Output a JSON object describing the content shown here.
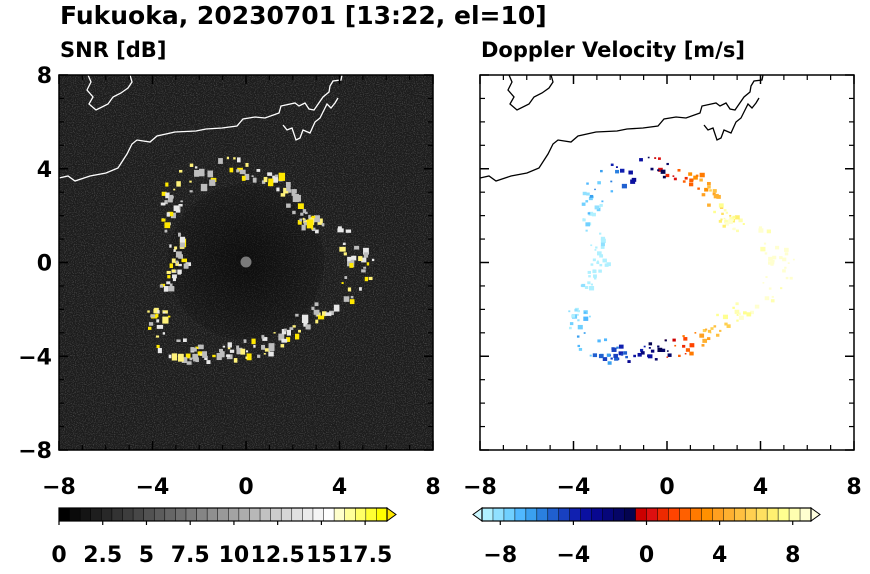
{
  "title": "Fukuoka, 20230701 [13:22, el=10]",
  "chart_data": [
    {
      "type": "heatmap",
      "title": "SNR [dB]",
      "xlim": [
        -8,
        8
      ],
      "ylim": [
        -8,
        8
      ],
      "xticks": [
        "−8",
        "−4",
        "0",
        "4",
        "8"
      ],
      "yticks": [
        "8",
        "4",
        "0",
        "−4",
        "−8"
      ],
      "colorbar": {
        "colors": [
          "#000000",
          "#0a0a0a",
          "#141414",
          "#1e1e1e",
          "#282828",
          "#333333",
          "#3d3d3d",
          "#474747",
          "#525252",
          "#5c5c5c",
          "#666666",
          "#707070",
          "#7a7a7a",
          "#858585",
          "#8f8f8f",
          "#999999",
          "#a3a3a3",
          "#adadad",
          "#b8b8b8",
          "#c2c2c2",
          "#cccccc",
          "#d6d6d6",
          "#e0e0e0",
          "#ebebeb",
          "#f5f5f5",
          "#ffffff",
          "#ffffcc",
          "#ffff99",
          "#ffff66",
          "#ffff33",
          "#ffff00"
        ],
        "extend": "max",
        "extend_color": "#ffe800",
        "tick_labels": [
          "0",
          "2.5",
          "5",
          "7.5",
          "10",
          "12.5",
          "15",
          "17.5"
        ],
        "tick_values": [
          0,
          2.5,
          5,
          7.5,
          10,
          12.5,
          15,
          17.5
        ],
        "range": [
          0,
          18.75
        ]
      }
    },
    {
      "type": "heatmap",
      "title": "Doppler Velocity [m/s]",
      "xlim": [
        -8,
        8
      ],
      "ylim": [
        -8,
        8
      ],
      "xticks": [
        "−8",
        "−4",
        "0",
        "4",
        "8"
      ],
      "yticks": [],
      "colorbar": {
        "colors": [
          "#b0f0ff",
          "#90e0ff",
          "#70d0ff",
          "#50b8ff",
          "#3aa0f0",
          "#2a80e0",
          "#2060d0",
          "#1840c0",
          "#1020b0",
          "#0a10a0",
          "#080890",
          "#06067a",
          "#050566",
          "#040450",
          "#cc0000",
          "#dd1010",
          "#ee2a00",
          "#ff4400",
          "#ff6000",
          "#ff7a00",
          "#ff9000",
          "#ffa020",
          "#ffb030",
          "#ffc040",
          "#ffd050",
          "#ffe060",
          "#fff070",
          "#ffff90",
          "#ffffb0",
          "#ffffd0"
        ],
        "extend": "both",
        "extend_min_color": "#ccf8ff",
        "extend_max_color": "#ffffe0",
        "tick_labels": [
          "−8",
          "−4",
          "0",
          "4",
          "8"
        ],
        "tick_values": [
          -8,
          -4,
          0,
          4,
          8
        ],
        "range": [
          -9,
          9
        ]
      }
    }
  ]
}
